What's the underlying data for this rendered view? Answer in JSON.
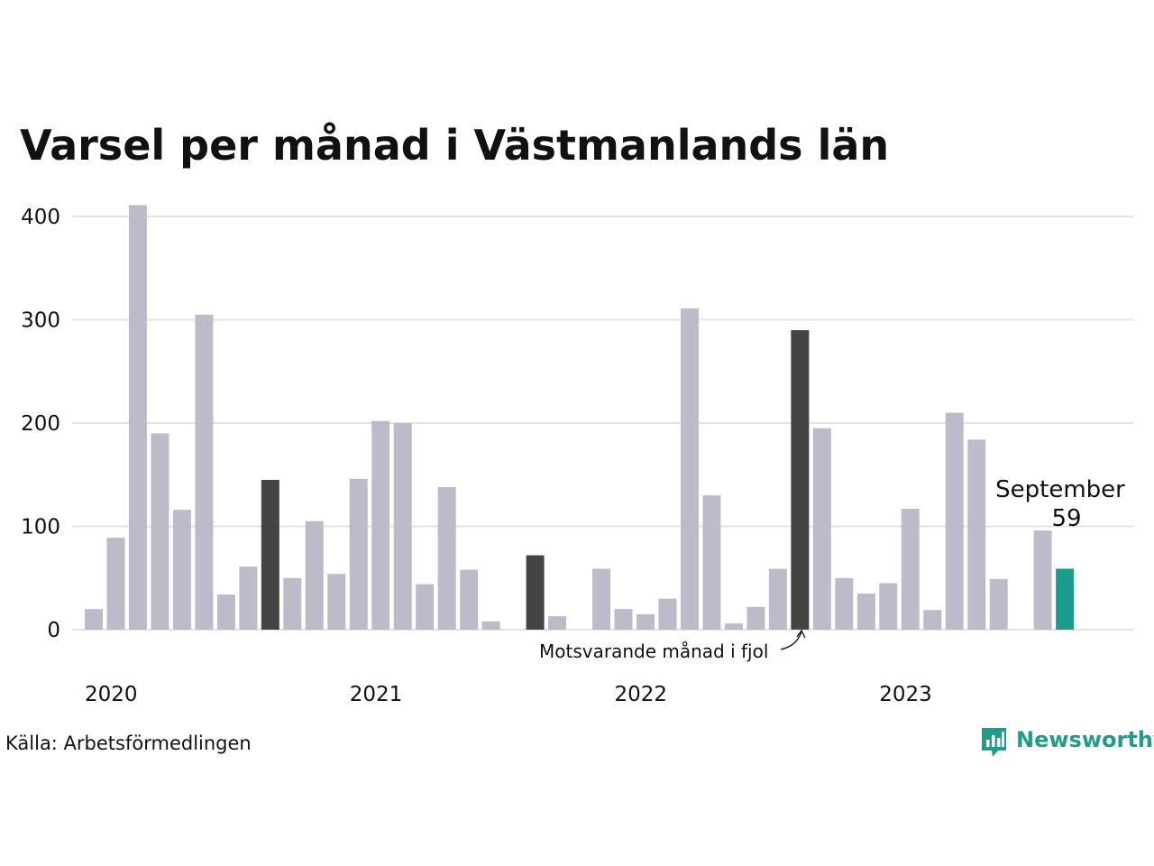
{
  "chart_data": {
    "type": "bar",
    "title": "Varsel per månad i Västmanlands län",
    "xlabel": "",
    "ylabel": "",
    "ylim": [
      0,
      400
    ],
    "yticks": [
      "0",
      "100",
      "200",
      "300",
      "400"
    ],
    "year_labels": [
      {
        "label": "2020",
        "month_index": 0
      },
      {
        "label": "2021",
        "month_index": 12
      },
      {
        "label": "2022",
        "month_index": 24
      },
      {
        "label": "2023",
        "month_index": 36
      }
    ],
    "x": [
      "2020-01",
      "2020-02",
      "2020-03",
      "2020-04",
      "2020-05",
      "2020-06",
      "2020-07",
      "2020-08",
      "2020-09",
      "2020-10",
      "2020-11",
      "2020-12",
      "2021-01",
      "2021-02",
      "2021-03",
      "2021-04",
      "2021-05",
      "2021-06",
      "2021-07",
      "2021-08",
      "2021-09",
      "2021-10",
      "2021-11",
      "2021-12",
      "2022-01",
      "2022-02",
      "2022-03",
      "2022-04",
      "2022-05",
      "2022-06",
      "2022-07",
      "2022-08",
      "2022-09",
      "2022-10",
      "2022-11",
      "2022-12",
      "2023-01",
      "2023-02",
      "2023-03",
      "2023-04",
      "2023-05",
      "2023-06",
      "2023-07",
      "2023-08",
      "2023-09"
    ],
    "values": [
      20,
      89,
      411,
      190,
      116,
      305,
      34,
      61,
      145,
      50,
      105,
      54,
      146,
      202,
      200,
      44,
      138,
      58,
      8,
      0,
      72,
      13,
      0,
      59,
      20,
      15,
      30,
      311,
      130,
      6,
      22,
      59,
      290,
      195,
      50,
      35,
      45,
      117,
      19,
      210,
      184,
      49,
      0,
      96,
      59
    ],
    "highlight_dark": [
      "2020-09",
      "2021-09",
      "2022-09"
    ],
    "highlight_current": "2023-09",
    "colors": {
      "default": "#bdbbc9",
      "dark": "#444444",
      "current": "#1a9c8c",
      "grid": "#e3e3e6"
    },
    "annotation": "Motsvarande månad i fjol",
    "last_label": {
      "month": "September",
      "value": "59"
    },
    "grid": true
  },
  "source": "Källa: Arbetsförmedlingen",
  "brand": {
    "name": "Newsworthy",
    "icon": "newsworthy-logo-icon",
    "color": "#1f9c8c"
  }
}
